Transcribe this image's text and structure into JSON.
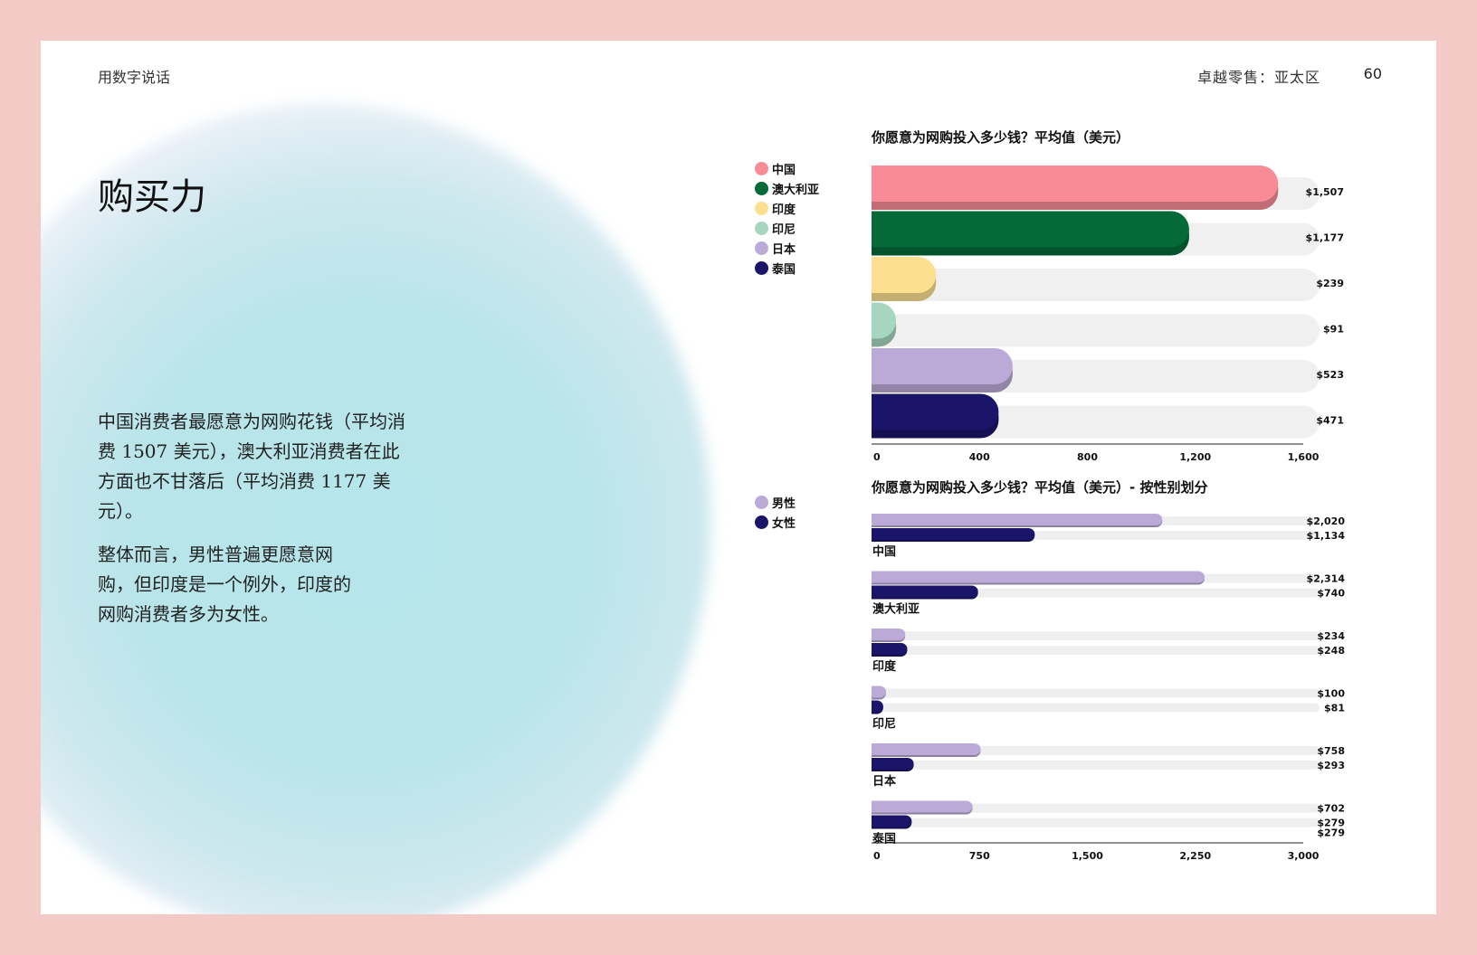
{
  "header": {
    "section": "用数字说话",
    "report": "卓越零售：亚太区",
    "page_number": "60"
  },
  "title": "购买力",
  "paragraphs": [
    "中国消费者最愿意为网购花钱（平均消费 1507 美元），澳大利亚消费者在此方面也不甘落后（平均消费 1177 美元）。",
    "整体而言，男性普遍更愿意网购，但印度是一个例外，印度的网购消费者多为女性。"
  ],
  "legend_countries": [
    {
      "label": "中国",
      "color": "#f78c96"
    },
    {
      "label": "澳大利亚",
      "color": "#036a38"
    },
    {
      "label": "印度",
      "color": "#fde08f"
    },
    {
      "label": "印尼",
      "color": "#a6d6bf"
    },
    {
      "label": "日本",
      "color": "#bbaad8"
    },
    {
      "label": "泰国",
      "color": "#1b1569"
    }
  ],
  "legend_gender": [
    {
      "label": "男性",
      "color": "#bbaad8"
    },
    {
      "label": "女性",
      "color": "#1b1569"
    }
  ],
  "chart_data": [
    {
      "type": "bar",
      "orientation": "horizontal",
      "title": "你愿意为网购投入多少钱？平均值（美元）",
      "categories": [
        "中国",
        "澳大利亚",
        "印度",
        "印尼",
        "日本",
        "泰国"
      ],
      "values": [
        1507,
        1177,
        239,
        91,
        523,
        471
      ],
      "value_labels": [
        "$1,507",
        "$1,177",
        "$239",
        "$91",
        "$523",
        "$471"
      ],
      "colors": [
        "#f78c96",
        "#036a38",
        "#fde08f",
        "#a6d6bf",
        "#bbaad8",
        "#1b1569"
      ],
      "xlim": [
        0,
        1650
      ],
      "xticks": [
        0,
        400,
        800,
        1200,
        1600
      ],
      "xtick_labels": [
        "0",
        "400",
        "800",
        "1,200",
        "1,600"
      ]
    },
    {
      "type": "bar",
      "orientation": "horizontal",
      "title": "你愿意为网购投入多少钱？平均值（美元）- 按性别划分",
      "categories": [
        "中国",
        "澳大利亚",
        "印度",
        "印尼",
        "日本",
        "泰国"
      ],
      "series": [
        {
          "name": "男性",
          "color": "#bbaad8",
          "values": [
            2020,
            2314,
            234,
            100,
            758,
            702
          ],
          "labels": [
            "$2,020",
            "$2,314",
            "$234",
            "$100",
            "$758",
            "$702"
          ]
        },
        {
          "name": "女性",
          "color": "#1b1569",
          "values": [
            1134,
            740,
            248,
            81,
            293,
            279
          ],
          "labels": [
            "$1,134",
            "$740",
            "$248",
            "$81",
            "$293",
            "$279"
          ]
        }
      ],
      "extra_labels": [
        {
          "category": "泰国",
          "label": "$279"
        }
      ],
      "xlim": [
        0,
        3000
      ],
      "xticks": [
        0,
        750,
        1500,
        2250,
        3000
      ],
      "xtick_labels": [
        "0",
        "750",
        "1,500",
        "2,250",
        "3,000"
      ]
    }
  ]
}
